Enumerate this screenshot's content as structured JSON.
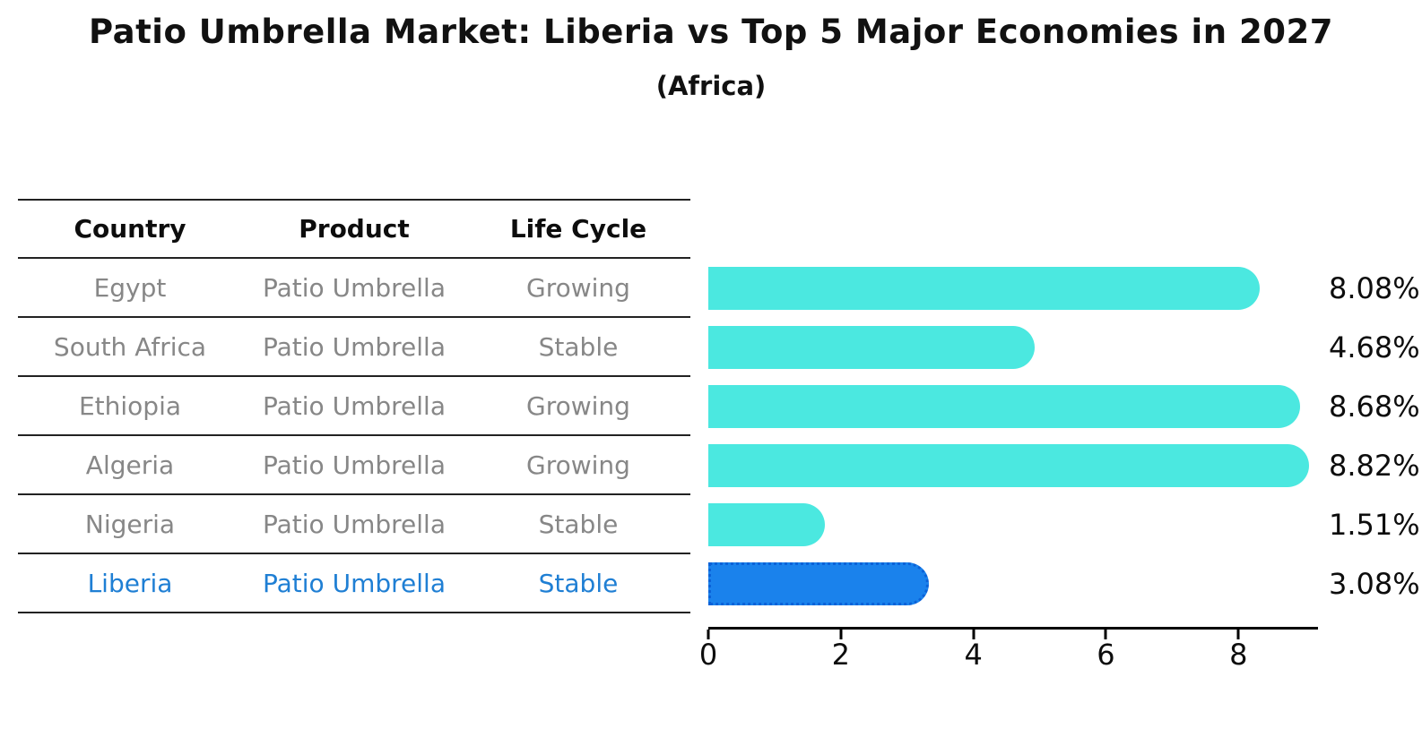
{
  "header": {
    "title": "Patio Umbrella Market: Liberia vs Top 5 Major Economies in 2027",
    "subtitle": "(Africa)"
  },
  "table": {
    "columns": [
      "Country",
      "Product",
      "Life Cycle"
    ]
  },
  "chart_data": {
    "type": "bar",
    "orientation": "horizontal",
    "title": "Patio Umbrella Market: Liberia vs Top 5 Major Economies in 2027",
    "subtitle": "(Africa)",
    "categories": [
      "Egypt",
      "South Africa",
      "Ethiopia",
      "Algeria",
      "Nigeria",
      "Liberia"
    ],
    "values": [
      8.08,
      4.68,
      8.68,
      8.82,
      1.51,
      3.08
    ],
    "value_labels": [
      "8.08%",
      "4.68%",
      "8.68%",
      "8.82%",
      "1.51%",
      "3.08%"
    ],
    "x_ticks": [
      "0",
      "2",
      "4",
      "6",
      "8"
    ],
    "x_tick_values": [
      0,
      2,
      4,
      6,
      8
    ],
    "xlim": [
      0,
      9.2
    ],
    "grid": false,
    "legend": false,
    "rows": [
      {
        "country": "Egypt",
        "product": "Patio Umbrella",
        "life_cycle": "Growing",
        "value": 8.08,
        "label": "8.08%",
        "highlight": false
      },
      {
        "country": "South Africa",
        "product": "Patio Umbrella",
        "life_cycle": "Stable",
        "value": 4.68,
        "label": "4.68%",
        "highlight": false
      },
      {
        "country": "Ethiopia",
        "product": "Patio Umbrella",
        "life_cycle": "Growing",
        "value": 8.68,
        "label": "8.68%",
        "highlight": false
      },
      {
        "country": "Algeria",
        "product": "Patio Umbrella",
        "life_cycle": "Growing",
        "value": 8.82,
        "label": "8.82%",
        "highlight": false
      },
      {
        "country": "Nigeria",
        "product": "Patio Umbrella",
        "life_cycle": "Stable",
        "value": 1.51,
        "label": "1.51%",
        "highlight": false
      },
      {
        "country": "Liberia",
        "product": "Patio Umbrella",
        "life_cycle": "Stable",
        "value": 3.08,
        "label": "3.08%",
        "highlight": true
      }
    ],
    "colors": {
      "bar": "#4BE8E0",
      "highlight_bar": "#1A82EC",
      "highlight_bar_border": "#0B62D8",
      "highlight_text": "#1F7FD4",
      "row_text": "#878787",
      "header_text": "#0d0d0d",
      "axis": "#000000"
    }
  }
}
